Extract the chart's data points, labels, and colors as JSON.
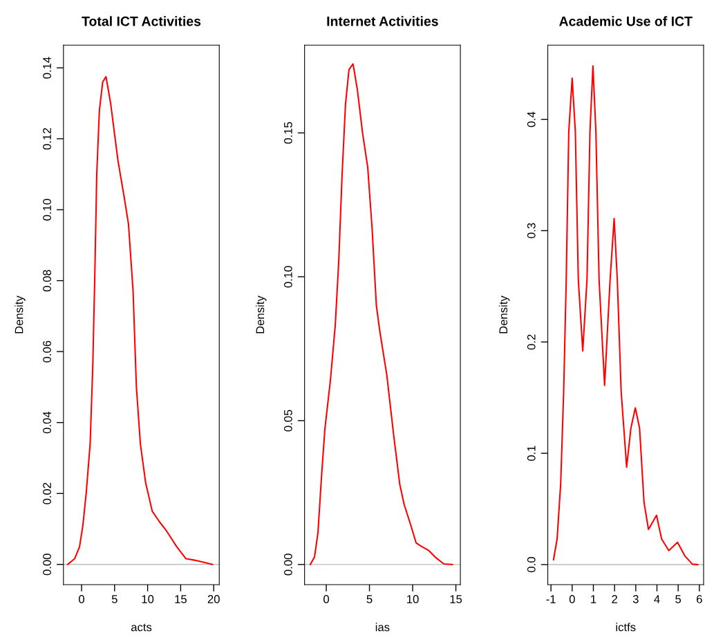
{
  "chart_data": [
    {
      "type": "line",
      "title": "Total ICT Activities",
      "xlabel": "acts",
      "ylabel": "Density",
      "xlim": [
        -2.74,
        20.84
      ],
      "ylim": [
        -0.0057,
        0.1464
      ],
      "xticks": [
        0,
        5,
        10,
        15,
        20
      ],
      "yticks": [
        {
          "value": 0,
          "label": "0.00"
        },
        {
          "value": 0.02,
          "label": "0.02"
        },
        {
          "value": 0.04,
          "label": "0.04"
        },
        {
          "value": 0.06,
          "label": "0.06"
        },
        {
          "value": 0.08,
          "label": "0.08"
        },
        {
          "value": 0.1,
          "label": "0.10"
        },
        {
          "value": 0.12,
          "label": "0.12"
        },
        {
          "value": 0.14,
          "label": "0.14"
        }
      ],
      "grid": false,
      "ref_lines": [
        {
          "axis": "y",
          "value": 0,
          "color": "#bebebe"
        }
      ],
      "series": [
        {
          "color": "#ff0000",
          "x": [
            -2.1,
            -1.05,
            -0.3,
            0.2,
            0.7,
            1.3,
            1.7,
            2.0,
            2.3,
            2.7,
            3.2,
            3.7,
            4.4,
            5.5,
            6.5,
            7.1,
            7.8,
            8.3,
            8.9,
            9.7,
            10.7,
            11.8,
            12.8,
            14.4,
            15.8,
            17.1,
            18.1,
            19.8
          ],
          "values": [
            0,
            0.0016,
            0.005,
            0.011,
            0.02,
            0.034,
            0.056,
            0.081,
            0.11,
            0.128,
            0.136,
            0.1375,
            0.13,
            0.114,
            0.103,
            0.096,
            0.077,
            0.05,
            0.034,
            0.023,
            0.015,
            0.012,
            0.0096,
            0.005,
            0.0016,
            0.0012,
            0.0008,
            0
          ]
        }
      ]
    },
    {
      "type": "line",
      "title": "Internet Activities",
      "xlabel": "ias",
      "ylabel": "Density",
      "xlim": [
        -2.51,
        15.52
      ],
      "ylim": [
        -0.007,
        0.1805
      ],
      "xticks": [
        0,
        5,
        10,
        15
      ],
      "yticks": [
        {
          "value": 0,
          "label": "0.00"
        },
        {
          "value": 0.05,
          "label": "0.05"
        },
        {
          "value": 0.1,
          "label": "0.10"
        },
        {
          "value": 0.15,
          "label": "0.15"
        }
      ],
      "grid": false,
      "ref_lines": [
        {
          "axis": "y",
          "value": 0,
          "color": "#bebebe"
        }
      ],
      "series": [
        {
          "color": "#ff0000",
          "x": [
            -1.84,
            -1.36,
            -0.96,
            -0.56,
            -0.16,
            0.48,
            1.04,
            1.44,
            1.84,
            2.23,
            2.63,
            3.1,
            3.6,
            4.2,
            4.8,
            5.3,
            5.8,
            6.2,
            7.0,
            7.8,
            8.5,
            9.0,
            9.8,
            10.4,
            11.0,
            11.8,
            12.6,
            13.6,
            14.6
          ],
          "values": [
            0,
            0.0026,
            0.011,
            0.03,
            0.047,
            0.064,
            0.083,
            0.105,
            0.136,
            0.16,
            0.172,
            0.174,
            0.165,
            0.15,
            0.138,
            0.117,
            0.09,
            0.081,
            0.066,
            0.045,
            0.028,
            0.021,
            0.0135,
            0.0075,
            0.0063,
            0.005,
            0.0026,
            0.0002,
            0
          ]
        }
      ]
    },
    {
      "type": "line",
      "title": "Academic Use of ICT",
      "xlabel": "ictfs",
      "ylabel": "Density",
      "xlim": [
        -1.15,
        6.2
      ],
      "ylim": [
        -0.018,
        0.4667
      ],
      "xticks": [
        -1,
        0,
        1,
        2,
        3,
        4,
        5,
        6
      ],
      "yticks": [
        {
          "value": 0,
          "label": "0.0"
        },
        {
          "value": 0.1,
          "label": "0.1"
        },
        {
          "value": 0.2,
          "label": "0.2"
        },
        {
          "value": 0.3,
          "label": "0.3"
        },
        {
          "value": 0.4,
          "label": "0.4"
        }
      ],
      "grid": false,
      "ref_lines": [
        {
          "axis": "y",
          "value": 0,
          "color": "#bebebe"
        }
      ],
      "series": [
        {
          "color": "#ff0000",
          "x": [
            -0.88,
            -0.71,
            -0.54,
            -0.4,
            -0.28,
            -0.16,
            0.0,
            0.15,
            0.29,
            0.5,
            0.7,
            0.84,
            0.98,
            1.12,
            1.27,
            1.53,
            1.79,
            1.98,
            2.13,
            2.31,
            2.57,
            2.77,
            2.98,
            3.18,
            3.39,
            3.6,
            3.98,
            4.22,
            4.56,
            4.97,
            5.32,
            5.67,
            5.92
          ],
          "values": [
            0.0044,
            0.023,
            0.073,
            0.156,
            0.256,
            0.389,
            0.437,
            0.389,
            0.256,
            0.192,
            0.256,
            0.389,
            0.448,
            0.389,
            0.256,
            0.161,
            0.256,
            0.311,
            0.256,
            0.156,
            0.0876,
            0.1225,
            0.1408,
            0.1225,
            0.056,
            0.0316,
            0.0443,
            0.023,
            0.0126,
            0.02,
            0.0077,
            0.0004,
            0
          ]
        }
      ]
    }
  ]
}
